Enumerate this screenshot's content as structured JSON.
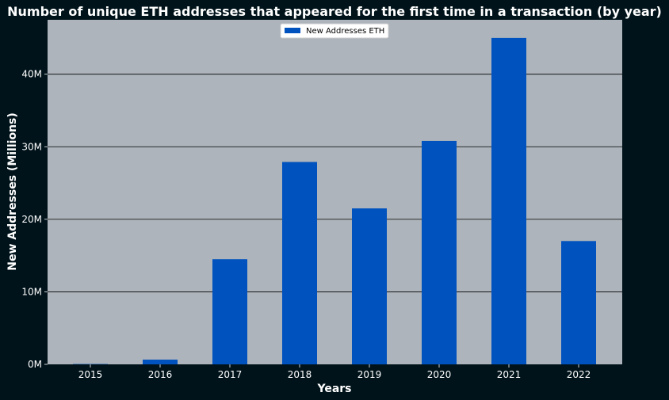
{
  "chart_data": {
    "type": "bar",
    "title": "Number of unique ETH addresses that appeared for the first time in a transaction (by year)",
    "xlabel": "Years",
    "ylabel": "New Addresses (Millions)",
    "categories": [
      "2015",
      "2016",
      "2017",
      "2018",
      "2019",
      "2020",
      "2021",
      "2022"
    ],
    "series": [
      {
        "name": "New Addresses ETH",
        "values": [
          0.05,
          0.65,
          14.5,
          27.9,
          21.5,
          30.8,
          45.0,
          17.0
        ]
      }
    ],
    "ylim": [
      0,
      47.5
    ],
    "yticks": [
      0,
      10,
      20,
      30,
      40
    ],
    "ytick_labels": [
      "0M",
      "10M",
      "20M",
      "30M",
      "40M"
    ],
    "grid": "horizontal",
    "legend_position": "top-center",
    "colors": {
      "figure_background": "#00131a",
      "plot_background": "#adb4bb",
      "bar": "#0052bf",
      "gridline": "#000000",
      "text": "#ffffff"
    }
  }
}
